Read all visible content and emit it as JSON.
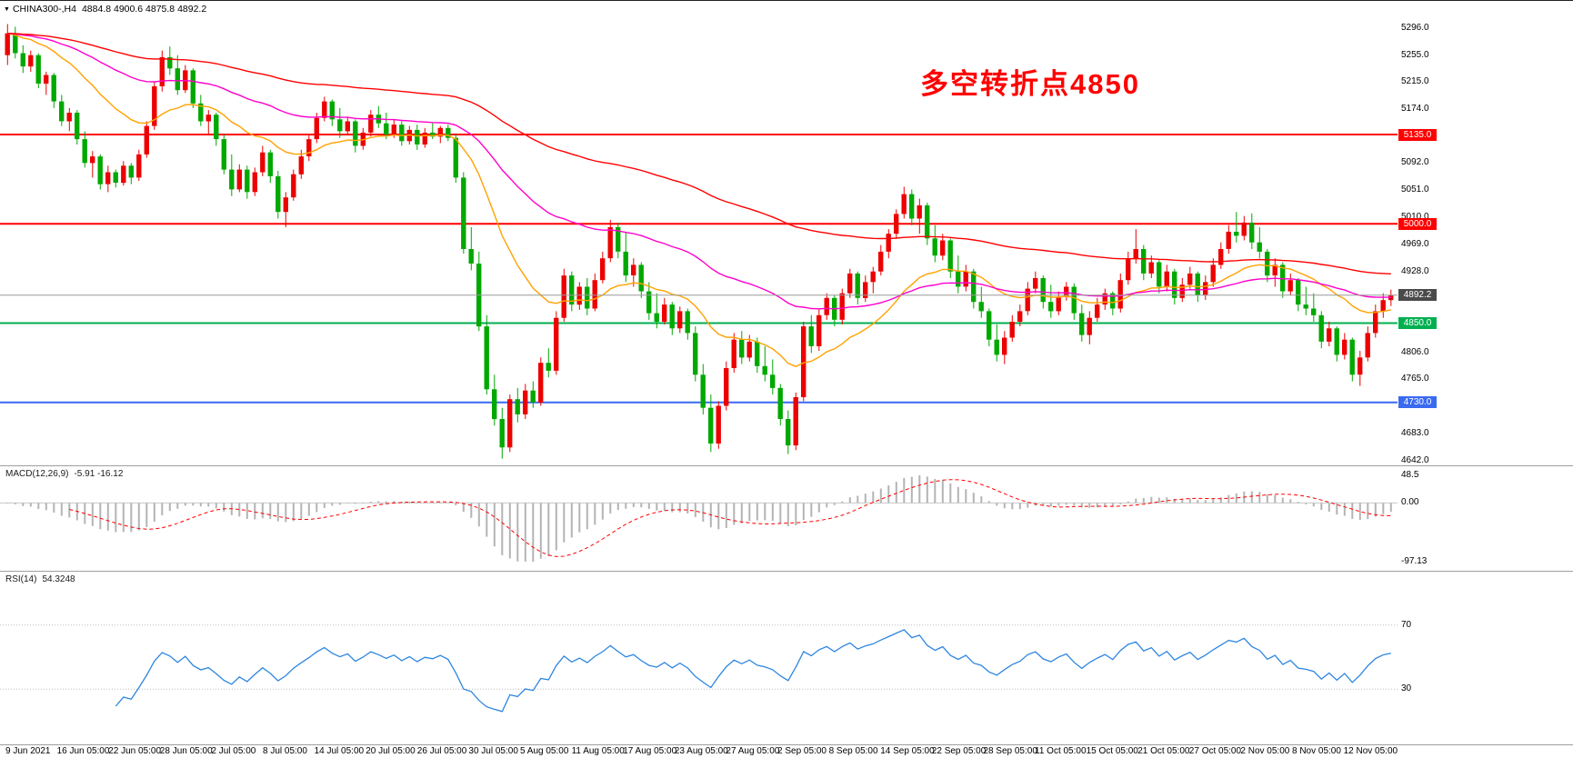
{
  "header": {
    "dropdown_icon": "▼",
    "symbol": "CHINA300-,H4",
    "ohlc": "4884.8 4900.6 4875.8 4892.2"
  },
  "annotation": {
    "text": "多空转折点4850",
    "color": "#FF0000"
  },
  "chart_data": {
    "type": "candlestick",
    "title": "CHINA300-,H4",
    "up_color": "#EC0000",
    "down_color": "#00A800",
    "price_axis": {
      "ymin": 4635,
      "ymax": 5337,
      "ticks": [
        {
          "price": 5296.0,
          "label": "5296.0"
        },
        {
          "price": 5255.0,
          "label": "5255.0"
        },
        {
          "price": 5215.0,
          "label": "5215.0"
        },
        {
          "price": 5174.0,
          "label": "5174.0"
        },
        {
          "price": 5092.0,
          "label": "5092.0"
        },
        {
          "price": 5051.0,
          "label": "5051.0"
        },
        {
          "price": 5010.0,
          "label": "5010.0"
        },
        {
          "price": 4969.0,
          "label": "4969.0"
        },
        {
          "price": 4928.0,
          "label": "4928.0"
        },
        {
          "price": 4806.0,
          "label": "4806.0"
        },
        {
          "price": 4765.0,
          "label": "4765.0"
        },
        {
          "price": 4683.0,
          "label": "4683.0"
        },
        {
          "price": 4642.0,
          "label": "4642.0"
        }
      ]
    },
    "levels": [
      {
        "price": 5135.0,
        "label": "5135.0",
        "color": "#FF0000",
        "badge_bg": "#FF0000",
        "line_width": 2
      },
      {
        "price": 5000.0,
        "label": "5000.0",
        "color": "#FF0000",
        "badge_bg": "#FF0000",
        "line_width": 2
      },
      {
        "price": 4850.0,
        "label": "4850.0",
        "color": "#00B050",
        "badge_bg": "#00B050",
        "line_width": 2
      },
      {
        "price": 4730.0,
        "label": "4730.0",
        "color": "#3A6AF0",
        "badge_bg": "#3A6AF0",
        "line_width": 2
      },
      {
        "price": 4892.2,
        "label": "4892.2",
        "color": "#9A9A9A",
        "badge_bg": "#4A4A4A",
        "line_width": 1,
        "role": "last-price"
      }
    ],
    "moving_averages": [
      {
        "period": 21,
        "type": "ema",
        "color": "#FFA200"
      },
      {
        "period": 55,
        "type": "ema",
        "color": "#FF00CC"
      },
      {
        "period": 120,
        "type": "ema",
        "color": "#FF0000"
      }
    ],
    "candles": [
      [
        5255,
        5302,
        5240,
        5288
      ],
      [
        5288,
        5298,
        5250,
        5258
      ],
      [
        5258,
        5270,
        5228,
        5238
      ],
      [
        5238,
        5262,
        5230,
        5255
      ],
      [
        5255,
        5258,
        5205,
        5212
      ],
      [
        5212,
        5230,
        5195,
        5225
      ],
      [
        5225,
        5228,
        5175,
        5185
      ],
      [
        5185,
        5195,
        5148,
        5155
      ],
      [
        5155,
        5175,
        5140,
        5168
      ],
      [
        5168,
        5172,
        5120,
        5128
      ],
      [
        5128,
        5140,
        5085,
        5092
      ],
      [
        5092,
        5110,
        5070,
        5102
      ],
      [
        5102,
        5105,
        5052,
        5060
      ],
      [
        5060,
        5088,
        5048,
        5078
      ],
      [
        5078,
        5082,
        5055,
        5062
      ],
      [
        5062,
        5095,
        5058,
        5088
      ],
      [
        5088,
        5092,
        5060,
        5070
      ],
      [
        5070,
        5112,
        5065,
        5105
      ],
      [
        5105,
        5155,
        5100,
        5148
      ],
      [
        5148,
        5215,
        5142,
        5208
      ],
      [
        5208,
        5262,
        5200,
        5252
      ],
      [
        5252,
        5268,
        5225,
        5235
      ],
      [
        5235,
        5255,
        5195,
        5202
      ],
      [
        5202,
        5240,
        5198,
        5232
      ],
      [
        5232,
        5235,
        5175,
        5182
      ],
      [
        5182,
        5195,
        5148,
        5155
      ],
      [
        5155,
        5172,
        5135,
        5165
      ],
      [
        5165,
        5168,
        5118,
        5128
      ],
      [
        5128,
        5135,
        5075,
        5082
      ],
      [
        5082,
        5105,
        5042,
        5052
      ],
      [
        5052,
        5090,
        5048,
        5082
      ],
      [
        5082,
        5088,
        5038,
        5048
      ],
      [
        5048,
        5085,
        5042,
        5078
      ],
      [
        5078,
        5118,
        5072,
        5108
      ],
      [
        5108,
        5112,
        5062,
        5072
      ],
      [
        5072,
        5080,
        5008,
        5018
      ],
      [
        5018,
        5048,
        4995,
        5040
      ],
      [
        5040,
        5082,
        5035,
        5075
      ],
      [
        5075,
        5112,
        5068,
        5102
      ],
      [
        5102,
        5135,
        5095,
        5128
      ],
      [
        5128,
        5168,
        5122,
        5160
      ],
      [
        5160,
        5192,
        5155,
        5185
      ],
      [
        5185,
        5188,
        5148,
        5158
      ],
      [
        5158,
        5175,
        5130,
        5140
      ],
      [
        5140,
        5162,
        5135,
        5155
      ],
      [
        5155,
        5158,
        5108,
        5118
      ],
      [
        5118,
        5145,
        5112,
        5138
      ],
      [
        5138,
        5172,
        5132,
        5165
      ],
      [
        5165,
        5178,
        5145,
        5152
      ],
      [
        5152,
        5168,
        5128,
        5135
      ],
      [
        5135,
        5158,
        5130,
        5150
      ],
      [
        5150,
        5155,
        5118,
        5125
      ],
      [
        5125,
        5148,
        5120,
        5142
      ],
      [
        5142,
        5150,
        5112,
        5120
      ],
      [
        5120,
        5145,
        5115,
        5138
      ],
      [
        5138,
        5152,
        5128,
        5132
      ],
      [
        5132,
        5148,
        5122,
        5145
      ],
      [
        5145,
        5150,
        5125,
        5130
      ],
      [
        5130,
        5135,
        5062,
        5070
      ],
      [
        5070,
        5078,
        4955,
        4962
      ],
      [
        4962,
        4995,
        4930,
        4940
      ],
      [
        4940,
        4958,
        4838,
        4845
      ],
      [
        4845,
        4862,
        4742,
        4750
      ],
      [
        4750,
        4772,
        4695,
        4705
      ],
      [
        4705,
        4722,
        4645,
        4662
      ],
      [
        4662,
        4742,
        4655,
        4735
      ],
      [
        4735,
        4752,
        4700,
        4712
      ],
      [
        4712,
        4758,
        4705,
        4748
      ],
      [
        4748,
        4762,
        4722,
        4730
      ],
      [
        4730,
        4798,
        4725,
        4790
      ],
      [
        4790,
        4812,
        4768,
        4778
      ],
      [
        4778,
        4868,
        4772,
        4858
      ],
      [
        4858,
        4932,
        4852,
        4922
      ],
      [
        4922,
        4928,
        4868,
        4878
      ],
      [
        4878,
        4912,
        4870,
        4905
      ],
      [
        4905,
        4918,
        4862,
        4872
      ],
      [
        4872,
        4925,
        4868,
        4915
      ],
      [
        4915,
        4958,
        4910,
        4948
      ],
      [
        4948,
        5006,
        4942,
        4995
      ],
      [
        4995,
        5002,
        4948,
        4958
      ],
      [
        4958,
        4988,
        4912,
        4922
      ],
      [
        4922,
        4948,
        4905,
        4938
      ],
      [
        4938,
        4942,
        4888,
        4898
      ],
      [
        4898,
        4912,
        4855,
        4865
      ],
      [
        4865,
        4895,
        4842,
        4852
      ],
      [
        4852,
        4888,
        4848,
        4878
      ],
      [
        4878,
        4882,
        4832,
        4842
      ],
      [
        4842,
        4875,
        4835,
        4868
      ],
      [
        4868,
        4872,
        4825,
        4835
      ],
      [
        4835,
        4845,
        4762,
        4772
      ],
      [
        4772,
        4788,
        4712,
        4722
      ],
      [
        4722,
        4742,
        4655,
        4668
      ],
      [
        4668,
        4732,
        4660,
        4725
      ],
      [
        4725,
        4792,
        4718,
        4782
      ],
      [
        4782,
        4835,
        4775,
        4825
      ],
      [
        4825,
        4838,
        4788,
        4798
      ],
      [
        4798,
        4832,
        4792,
        4822
      ],
      [
        4822,
        4828,
        4775,
        4785
      ],
      [
        4785,
        4815,
        4762,
        4772
      ],
      [
        4772,
        4795,
        4742,
        4752
      ],
      [
        4752,
        4758,
        4695,
        4705
      ],
      [
        4705,
        4718,
        4652,
        4665
      ],
      [
        4665,
        4745,
        4658,
        4738
      ],
      [
        4738,
        4852,
        4732,
        4845
      ],
      [
        4845,
        4862,
        4805,
        4815
      ],
      [
        4815,
        4872,
        4808,
        4862
      ],
      [
        4862,
        4895,
        4855,
        4888
      ],
      [
        4888,
        4892,
        4845,
        4855
      ],
      [
        4855,
        4902,
        4848,
        4895
      ],
      [
        4895,
        4932,
        4888,
        4925
      ],
      [
        4925,
        4928,
        4878,
        4888
      ],
      [
        4888,
        4922,
        4882,
        4912
      ],
      [
        4912,
        4935,
        4895,
        4928
      ],
      [
        4928,
        4968,
        4922,
        4958
      ],
      [
        4958,
        4992,
        4948,
        4985
      ],
      [
        4985,
        5022,
        4978,
        5015
      ],
      [
        5015,
        5056,
        5008,
        5045
      ],
      [
        5045,
        5052,
        4998,
        5008
      ],
      [
        5008,
        5038,
        4985,
        5028
      ],
      [
        5028,
        5032,
        4968,
        4978
      ],
      [
        4978,
        4998,
        4942,
        4952
      ],
      [
        4952,
        4985,
        4945,
        4975
      ],
      [
        4975,
        4978,
        4918,
        4928
      ],
      [
        4928,
        4952,
        4895,
        4905
      ],
      [
        4905,
        4938,
        4898,
        4928
      ],
      [
        4928,
        4932,
        4872,
        4882
      ],
      [
        4882,
        4905,
        4858,
        4868
      ],
      [
        4868,
        4872,
        4815,
        4825
      ],
      [
        4825,
        4848,
        4792,
        4802
      ],
      [
        4802,
        4838,
        4788,
        4828
      ],
      [
        4828,
        4862,
        4822,
        4852
      ],
      [
        4852,
        4878,
        4845,
        4868
      ],
      [
        4868,
        4912,
        4862,
        4902
      ],
      [
        4902,
        4928,
        4895,
        4918
      ],
      [
        4918,
        4922,
        4872,
        4882
      ],
      [
        4882,
        4908,
        4858,
        4868
      ],
      [
        4868,
        4898,
        4862,
        4890
      ],
      [
        4890,
        4912,
        4884,
        4905
      ],
      [
        4905,
        4910,
        4855,
        4865
      ],
      [
        4865,
        4878,
        4822,
        4832
      ],
      [
        4832,
        4868,
        4818,
        4858
      ],
      [
        4858,
        4888,
        4852,
        4878
      ],
      [
        4878,
        4902,
        4870,
        4895
      ],
      [
        4895,
        4898,
        4862,
        4872
      ],
      [
        4872,
        4925,
        4866,
        4915
      ],
      [
        4915,
        4958,
        4908,
        4948
      ],
      [
        4948,
        4992,
        4940,
        4962
      ],
      [
        4962,
        4968,
        4915,
        4925
      ],
      [
        4925,
        4952,
        4918,
        4942
      ],
      [
        4942,
        4945,
        4895,
        4905
      ],
      [
        4905,
        4938,
        4898,
        4928
      ],
      [
        4928,
        4932,
        4878,
        4888
      ],
      [
        4888,
        4918,
        4882,
        4908
      ],
      [
        4908,
        4935,
        4902,
        4925
      ],
      [
        4925,
        4928,
        4882,
        4892
      ],
      [
        4892,
        4922,
        4885,
        4912
      ],
      [
        4912,
        4948,
        4905,
        4938
      ],
      [
        4938,
        4972,
        4932,
        4962
      ],
      [
        4962,
        4998,
        4955,
        4988
      ],
      [
        4988,
        5018,
        4972,
        4982
      ],
      [
        4982,
        5012,
        4975,
        5002
      ],
      [
        5002,
        5016,
        4962,
        4972
      ],
      [
        4972,
        4995,
        4948,
        4958
      ],
      [
        4958,
        4962,
        4912,
        4922
      ],
      [
        4922,
        4948,
        4905,
        4938
      ],
      [
        4938,
        4942,
        4888,
        4898
      ],
      [
        4898,
        4925,
        4892,
        4915
      ],
      [
        4915,
        4918,
        4868,
        4878
      ],
      [
        4878,
        4905,
        4862,
        4872
      ],
      [
        4872,
        4895,
        4852,
        4862
      ],
      [
        4862,
        4868,
        4812,
        4822
      ],
      [
        4822,
        4852,
        4815,
        4842
      ],
      [
        4842,
        4845,
        4792,
        4802
      ],
      [
        4802,
        4835,
        4795,
        4825
      ],
      [
        4825,
        4828,
        4762,
        4772
      ],
      [
        4772,
        4808,
        4755,
        4798
      ],
      [
        4798,
        4845,
        4792,
        4835
      ],
      [
        4835,
        4878,
        4828,
        4868
      ],
      [
        4868,
        4895,
        4858,
        4884.8
      ],
      [
        4884.8,
        4900.6,
        4875.8,
        4892.2
      ]
    ],
    "macd": {
      "label": "MACD(12,26,9)",
      "value_text": "-5.91 -16.12",
      "fast": 12,
      "slow": 26,
      "signal_period": 9,
      "hist_color": "#B4B4B4",
      "signal_color": "#FF0000",
      "ticks": {
        "top": "48.5",
        "zero": "0.00",
        "bottom": "-97.13"
      }
    },
    "rsi": {
      "label": "RSI(14)",
      "value_text": "54.3248",
      "period": 14,
      "color": "#2E86E0",
      "levels": [
        70,
        30
      ]
    },
    "time_labels": [
      "9 Jun 2021",
      "16 Jun 05:00",
      "22 Jun 05:00",
      "28 Jun 05:00",
      "2 Jul 05:00",
      "8 Jul 05:00",
      "14 Jul 05:00",
      "20 Jul 05:00",
      "26 Jul 05:00",
      "30 Jul 05:00",
      "5 Aug 05:00",
      "11 Aug 05:00",
      "17 Aug 05:00",
      "23 Aug 05:00",
      "27 Aug 05:00",
      "2 Sep 05:00",
      "8 Sep 05:00",
      "14 Sep 05:00",
      "22 Sep 05:00",
      "28 Sep 05:00",
      "11 Oct 05:00",
      "15 Oct 05:00",
      "21 Oct 05:00",
      "27 Oct 05:00",
      "2 Nov 05:00",
      "8 Nov 05:00",
      "12 Nov 05:00"
    ]
  }
}
